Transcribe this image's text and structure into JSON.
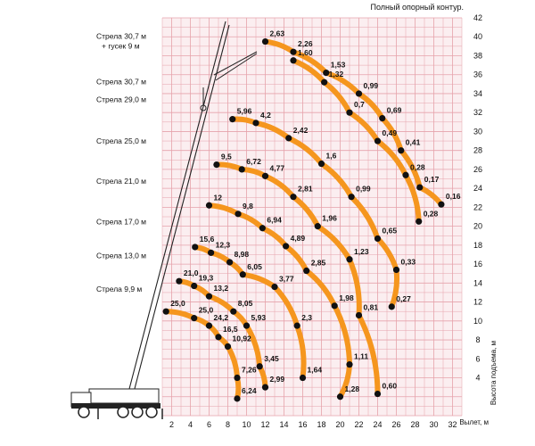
{
  "chart_data": {
    "type": "line",
    "title": "Полный опорный контур.",
    "xlabel": "Вылет, м",
    "ylabel": "Высота подъема, м",
    "xlim": [
      1,
      33
    ],
    "ylim": [
      0,
      42
    ],
    "x_ticks": [
      "2",
      "4",
      "6",
      "8",
      "10",
      "12",
      "14",
      "16",
      "18",
      "20",
      "22",
      "24",
      "26",
      "28",
      "30",
      "32"
    ],
    "y_ticks": [
      "4",
      "6",
      "8",
      "10",
      "12",
      "14",
      "16",
      "18",
      "20",
      "22",
      "24",
      "26",
      "28",
      "30",
      "32",
      "34",
      "36",
      "38",
      "40",
      "42"
    ],
    "grid": true,
    "line_color": "#f5961e",
    "grid_color": "#e6a2ab",
    "plot_bg": "#fbeef0",
    "point_color": "#111111",
    "series": [
      {
        "boom": "9,9",
        "label": "Стрела 9,9 м",
        "label_y": 13.1,
        "points": [
          {
            "x": 1.4,
            "y": 11.0,
            "label": "25,0"
          },
          {
            "x": 4.4,
            "y": 10.3,
            "label": "25,0"
          },
          {
            "x": 6.0,
            "y": 9.5,
            "label": "24,2"
          },
          {
            "x": 7.0,
            "y": 8.3,
            "label": "16,5"
          },
          {
            "x": 8.0,
            "y": 7.3,
            "label": "10,92"
          },
          {
            "x": 9.0,
            "y": 4.0,
            "label": "7,26"
          },
          {
            "x": 9.0,
            "y": 1.8,
            "label": "6,24"
          }
        ]
      },
      {
        "boom": "13,0",
        "label": "Стрела 13,0 м",
        "label_y": 16.6,
        "points": [
          {
            "x": 2.8,
            "y": 14.2,
            "label": "21,0"
          },
          {
            "x": 4.4,
            "y": 13.7,
            "label": "19,3"
          },
          {
            "x": 6.0,
            "y": 12.6,
            "label": "13,2"
          },
          {
            "x": 8.6,
            "y": 11.0,
            "label": "8,05"
          },
          {
            "x": 10.0,
            "y": 9.5,
            "label": "5,93"
          },
          {
            "x": 11.4,
            "y": 5.2,
            "label": "3,45"
          },
          {
            "x": 12.0,
            "y": 3.0,
            "label": "2,99"
          }
        ]
      },
      {
        "boom": "17,0",
        "label": "Стрела 17,0 м",
        "label_y": 20.2,
        "points": [
          {
            "x": 4.5,
            "y": 17.8,
            "label": "15,6"
          },
          {
            "x": 6.2,
            "y": 17.2,
            "label": "12,3"
          },
          {
            "x": 8.2,
            "y": 16.2,
            "label": "8,98"
          },
          {
            "x": 9.6,
            "y": 14.9,
            "label": "6,05"
          },
          {
            "x": 13.0,
            "y": 13.6,
            "label": "3,77"
          },
          {
            "x": 15.4,
            "y": 9.5,
            "label": "2,3"
          },
          {
            "x": 16.0,
            "y": 4.0,
            "label": "1,64"
          }
        ]
      },
      {
        "boom": "21,0",
        "label": "Стрела 21,0 м",
        "label_y": 24.5,
        "points": [
          {
            "x": 6.0,
            "y": 22.2,
            "label": "12"
          },
          {
            "x": 9.1,
            "y": 21.3,
            "label": "9,8"
          },
          {
            "x": 11.7,
            "y": 19.8,
            "label": "6,94"
          },
          {
            "x": 14.2,
            "y": 17.9,
            "label": "4,89"
          },
          {
            "x": 16.4,
            "y": 15.3,
            "label": "2,85"
          },
          {
            "x": 19.4,
            "y": 11.6,
            "label": "1,98"
          },
          {
            "x": 21.0,
            "y": 5.4,
            "label": "1,11"
          },
          {
            "x": 20.0,
            "y": 2.0,
            "label": "1,28"
          }
        ]
      },
      {
        "boom": "25,0",
        "label": "Стрела 25,0 м",
        "label_y": 28.7,
        "points": [
          {
            "x": 6.8,
            "y": 26.5,
            "label": "9,5"
          },
          {
            "x": 9.5,
            "y": 26.0,
            "label": "6,72"
          },
          {
            "x": 12.0,
            "y": 25.3,
            "label": "4,77"
          },
          {
            "x": 15.0,
            "y": 23.1,
            "label": "2,81"
          },
          {
            "x": 17.6,
            "y": 20.0,
            "label": "1,96"
          },
          {
            "x": 21.0,
            "y": 16.5,
            "label": "1,23"
          },
          {
            "x": 22.0,
            "y": 10.6,
            "label": "0,81"
          },
          {
            "x": 24.0,
            "y": 2.3,
            "label": "0,60"
          }
        ]
      },
      {
        "boom": "29,0",
        "label": "Стрела 29,0 м",
        "label_y": 33.1,
        "points": [
          {
            "x": 8.5,
            "y": 31.3,
            "label": "5,96"
          },
          {
            "x": 11.0,
            "y": 30.9,
            "label": "4,2"
          },
          {
            "x": 14.5,
            "y": 29.3,
            "label": "2,42"
          },
          {
            "x": 18.0,
            "y": 26.6,
            "label": "1,6"
          },
          {
            "x": 21.2,
            "y": 23.1,
            "label": "0,99"
          },
          {
            "x": 24.0,
            "y": 18.7,
            "label": "0,65"
          },
          {
            "x": 26.0,
            "y": 15.4,
            "label": "0,33"
          },
          {
            "x": 25.5,
            "y": 11.5,
            "label": "0,27"
          }
        ]
      },
      {
        "boom": "30,7",
        "label": "Стрела 30,7 м",
        "label_y": 35.0,
        "points": [
          {
            "x": 15.0,
            "y": 37.5,
            "label": "1,60"
          },
          {
            "x": 18.3,
            "y": 35.2,
            "label": "1,32"
          },
          {
            "x": 21.0,
            "y": 32.0,
            "label": "0,7"
          },
          {
            "x": 24.0,
            "y": 29.0,
            "label": "0,49"
          },
          {
            "x": 27.0,
            "y": 25.4,
            "label": "0,28"
          },
          {
            "x": 28.4,
            "y": 20.5,
            "label": "0,28"
          }
        ]
      },
      {
        "boom": "30,7 + гусек 9",
        "label": "Стрела 30,7 м",
        "label2": "+ гусек 9 м",
        "label_y": 39.2,
        "points": [
          {
            "x": 12.0,
            "y": 39.5,
            "label": "2,63"
          },
          {
            "x": 15.0,
            "y": 38.4,
            "label": "2,26"
          },
          {
            "x": 18.5,
            "y": 36.2,
            "label": "1,53"
          },
          {
            "x": 22.0,
            "y": 34.0,
            "label": "0,99"
          },
          {
            "x": 24.5,
            "y": 31.4,
            "label": "0,69"
          },
          {
            "x": 26.5,
            "y": 28.0,
            "label": "0,41"
          },
          {
            "x": 28.5,
            "y": 24.1,
            "label": "0,17"
          },
          {
            "x": 30.8,
            "y": 22.3,
            "label": "0,16"
          }
        ]
      }
    ]
  }
}
